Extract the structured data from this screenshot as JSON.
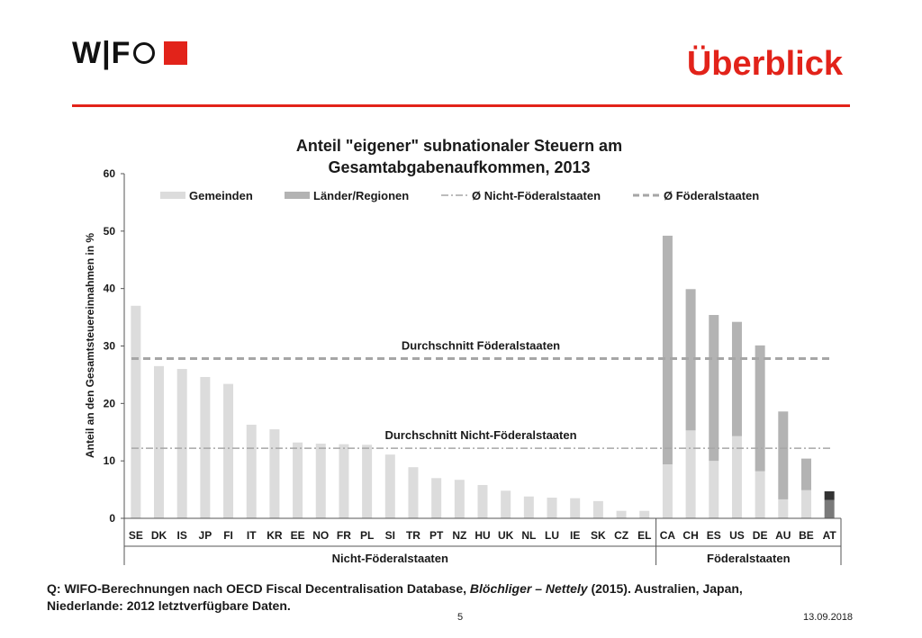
{
  "header": {
    "logo_text": "W|F",
    "title": "Überblick"
  },
  "colors": {
    "accent": "#e2231a",
    "gemeinden": "#dcdcdc",
    "laender": "#b3b3b3",
    "avg_line": "#a6a6a6",
    "at_dark": "#333333",
    "at_mid": "#7a7a7a"
  },
  "chart_data": {
    "type": "bar",
    "stacked": true,
    "title_line1": "Anteil \"eigener\" subnationaler Steuern am",
    "title_line2": "Gesamtabgabenaufkommen, 2013",
    "ylabel": "Anteil an den Gesamtsteuereinnahmen in %",
    "ylim": [
      0,
      60
    ],
    "yticks": [
      0,
      10,
      20,
      30,
      40,
      50,
      60
    ],
    "categories": [
      "SE",
      "DK",
      "IS",
      "JP",
      "FI",
      "IT",
      "KR",
      "EE",
      "NO",
      "FR",
      "PL",
      "SI",
      "TR",
      "PT",
      "NZ",
      "HU",
      "UK",
      "NL",
      "LU",
      "IE",
      "SK",
      "CZ",
      "EL",
      "CA",
      "CH",
      "ES",
      "US",
      "DE",
      "AU",
      "BE",
      "AT"
    ],
    "series": [
      {
        "name": "Gemeinden",
        "values": [
          37.0,
          26.5,
          26.0,
          24.6,
          23.4,
          16.3,
          15.5,
          13.2,
          13.0,
          12.9,
          12.8,
          11.1,
          8.9,
          7.0,
          6.7,
          5.8,
          4.8,
          3.8,
          3.6,
          3.5,
          3.0,
          1.3,
          1.3,
          9.4,
          15.3,
          10.0,
          14.3,
          8.2,
          3.3,
          4.9,
          0.0
        ]
      },
      {
        "name": "Länder/Regionen",
        "values": [
          0,
          0,
          0,
          0,
          0,
          0,
          0,
          0,
          0,
          0,
          0,
          0,
          0,
          0,
          0,
          0,
          0,
          0,
          0,
          0,
          0,
          0,
          0,
          39.8,
          24.6,
          25.4,
          19.9,
          21.9,
          15.3,
          5.5,
          0.0
        ]
      }
    ],
    "at_segments": [
      3.2,
      1.5
    ],
    "averages": [
      {
        "name": "Ø Nicht-Föderalstaaten",
        "value": 12.2,
        "label": "Durchschnitt Nicht-Föderalstaaten"
      },
      {
        "name": "Ø Föderalstaaten",
        "value": 27.8,
        "label": "Durchschnitt  Föderalstaaten"
      }
    ],
    "groups": [
      {
        "label": "Nicht-Föderalstaaten",
        "count": 23
      },
      {
        "label": "Föderalstaaten",
        "count": 8
      }
    ],
    "legend_position": "top",
    "grid": false
  },
  "footer": {
    "source": "Q: WIFO-Berechnungen nach OECD Fiscal Decentralisation Database, ",
    "source_italic": "Blöchliger – Nettely",
    "source_rest": " (2015). Australien, Japan,",
    "source_line2": "Niederlande: 2012 letztverfügbare Daten.",
    "page_number": "5",
    "date": "13.09.2018"
  }
}
